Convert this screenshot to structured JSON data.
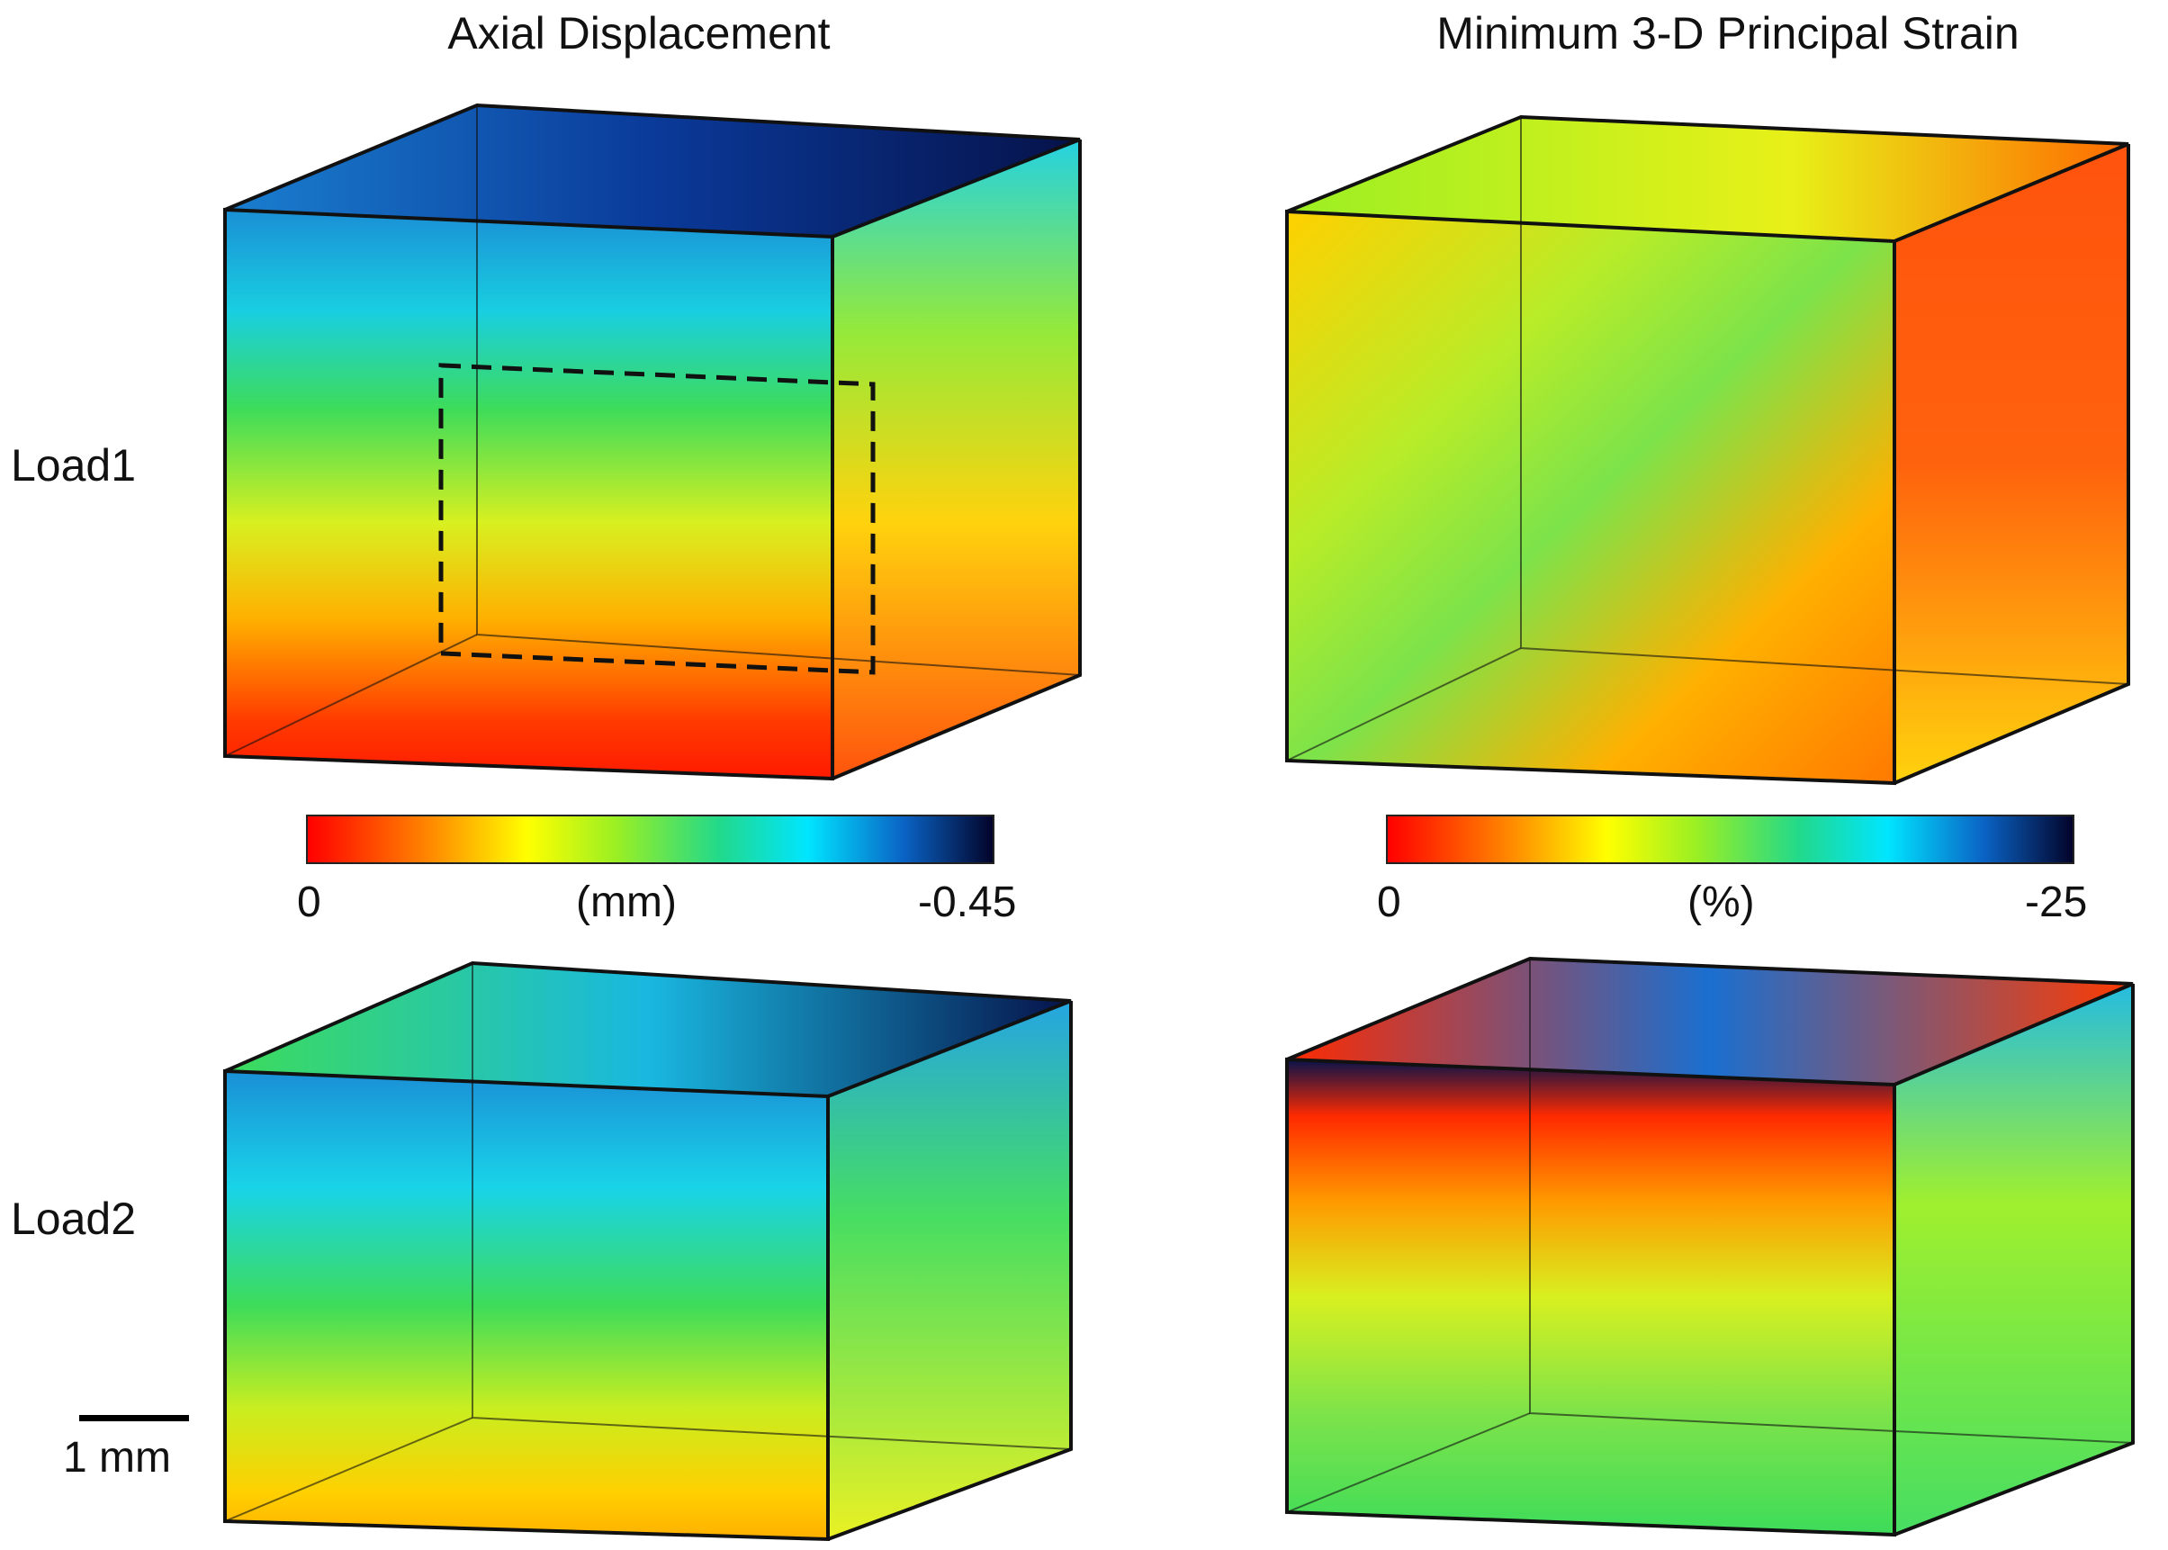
{
  "columns": {
    "left_title": "Axial Displacement",
    "right_title": "Minimum 3-D Principal Strain"
  },
  "rows": {
    "row1_label": "Load1",
    "row2_label": "Load2"
  },
  "colorbars": {
    "displacement": {
      "min_label": "0",
      "unit_label": "(mm)",
      "max_label": "-0.45"
    },
    "strain": {
      "min_label": "0",
      "unit_label": "(%)",
      "max_label": "-25"
    }
  },
  "scale_bar": {
    "label": "1 mm"
  },
  "colors": {
    "red": "#ff1a00",
    "orange": "#ff8a00",
    "yellow": "#ffee00",
    "green": "#3ddc5a",
    "cyan": "#19d4e8",
    "blue": "#0a63c5",
    "navy": "#06124a"
  }
}
